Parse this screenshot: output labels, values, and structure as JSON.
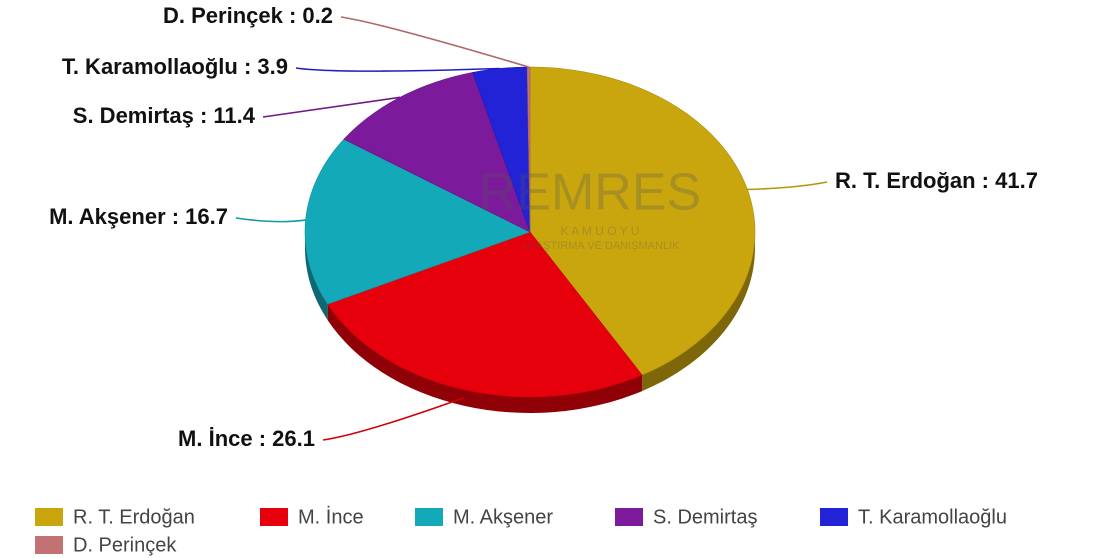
{
  "chart_data": {
    "type": "pie",
    "categories": [
      "R. T. Erdoğan",
      "M. İnce",
      "M. Akşener",
      "S. Demirtaş",
      "T. Karamollaoğlu",
      "D. Perinçek"
    ],
    "values": [
      41.7,
      26.1,
      16.7,
      11.4,
      3.9,
      0.2
    ],
    "value_labels": [
      "R. T. Erdoğan : 41.7",
      "M. İnce : 26.1",
      "M. Akşener : 16.7",
      "S. Demirtaş : 11.4",
      "T. Karamollaoğlu : 3.9",
      "D. Perinçek : 0.2"
    ],
    "colors": [
      "#c9a60e",
      "#e6000b",
      "#14a9b9",
      "#7b1b9b",
      "#2222d6",
      "#c27272"
    ],
    "watermark": {
      "brand": "REMRES",
      "line1": "K A M U O Y U",
      "line2": "ARAŞTIRMA VE DANIŞMANLIK"
    },
    "legend": "bottom"
  }
}
